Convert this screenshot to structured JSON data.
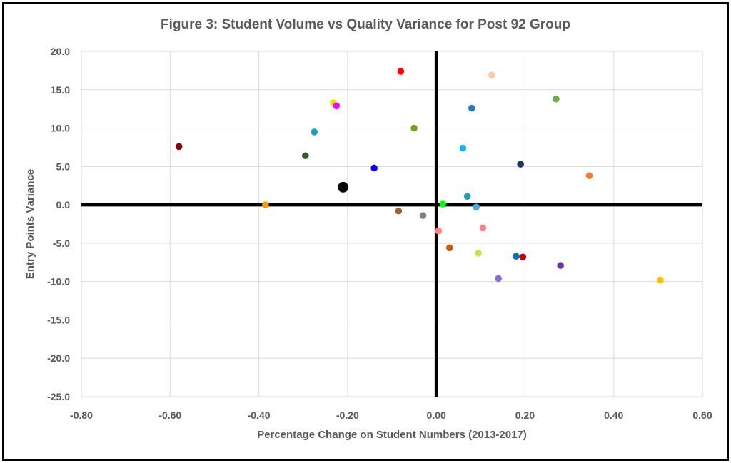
{
  "chart_data": {
    "type": "scatter",
    "title": "Figure 3: Student Volume vs Quality Variance for Post 92 Group",
    "xlabel": "Percentage Change on Student Numbers (2013-2017)",
    "ylabel": "Entry Points Variance",
    "xlim": [
      -0.8,
      0.6
    ],
    "ylim": [
      -25,
      20
    ],
    "x_ticks": [
      "-0.80",
      "-0.60",
      "-0.40",
      "-0.20",
      "0.00",
      "0.20",
      "0.40",
      "0.60"
    ],
    "y_ticks": [
      "20.0",
      "15.0",
      "10.0",
      "5.0",
      "0.0",
      "-5.0",
      "-10.0",
      "-15.0",
      "-20.0",
      "-25.0"
    ],
    "grid": true,
    "reference_lines": {
      "x": 0,
      "y": 0,
      "color": "#000000"
    },
    "points": [
      {
        "x": -0.58,
        "y": 7.6,
        "color": "#8B0000"
      },
      {
        "x": -0.385,
        "y": 0.0,
        "color": "#FF9900"
      },
      {
        "x": -0.295,
        "y": 6.4,
        "color": "#375623"
      },
      {
        "x": -0.275,
        "y": 9.5,
        "color": "#1F9FB8"
      },
      {
        "x": -0.232,
        "y": 13.3,
        "color": "#E5E000"
      },
      {
        "x": -0.225,
        "y": 12.9,
        "color": "#FF00FF"
      },
      {
        "x": -0.21,
        "y": 2.3,
        "color": "#000000",
        "size": "large"
      },
      {
        "x": -0.14,
        "y": 4.8,
        "color": "#0000FF"
      },
      {
        "x": -0.08,
        "y": 17.4,
        "color": "#FF0000"
      },
      {
        "x": -0.085,
        "y": -0.8,
        "color": "#9C6432"
      },
      {
        "x": -0.05,
        "y": 10.0,
        "color": "#70A020"
      },
      {
        "x": -0.03,
        "y": -1.4,
        "color": "#808080"
      },
      {
        "x": 0.005,
        "y": -3.4,
        "color": "#FF8080"
      },
      {
        "x": 0.015,
        "y": 0.1,
        "color": "#00FF00"
      },
      {
        "x": 0.03,
        "y": -5.6,
        "color": "#C55A11"
      },
      {
        "x": 0.06,
        "y": 7.4,
        "color": "#1CB0F0"
      },
      {
        "x": 0.07,
        "y": 1.1,
        "color": "#1F9FB8"
      },
      {
        "x": 0.08,
        "y": 12.6,
        "color": "#2E75B6"
      },
      {
        "x": 0.09,
        "y": -0.3,
        "color": "#4BA8E8"
      },
      {
        "x": 0.095,
        "y": -6.3,
        "color": "#C8E04A"
      },
      {
        "x": 0.105,
        "y": -3.0,
        "color": "#FF8080"
      },
      {
        "x": 0.125,
        "y": 16.9,
        "color": "#F8CBAD"
      },
      {
        "x": 0.14,
        "y": -9.6,
        "color": "#8A6BD8"
      },
      {
        "x": 0.18,
        "y": -6.7,
        "color": "#0070C0"
      },
      {
        "x": 0.19,
        "y": 5.3,
        "color": "#1F3864"
      },
      {
        "x": 0.195,
        "y": -6.8,
        "color": "#C00000"
      },
      {
        "x": 0.27,
        "y": 13.8,
        "color": "#70AD47"
      },
      {
        "x": 0.28,
        "y": -7.9,
        "color": "#7030A0"
      },
      {
        "x": 0.345,
        "y": 3.8,
        "color": "#ED7D31"
      },
      {
        "x": 0.505,
        "y": -9.8,
        "color": "#FFC000"
      }
    ]
  }
}
